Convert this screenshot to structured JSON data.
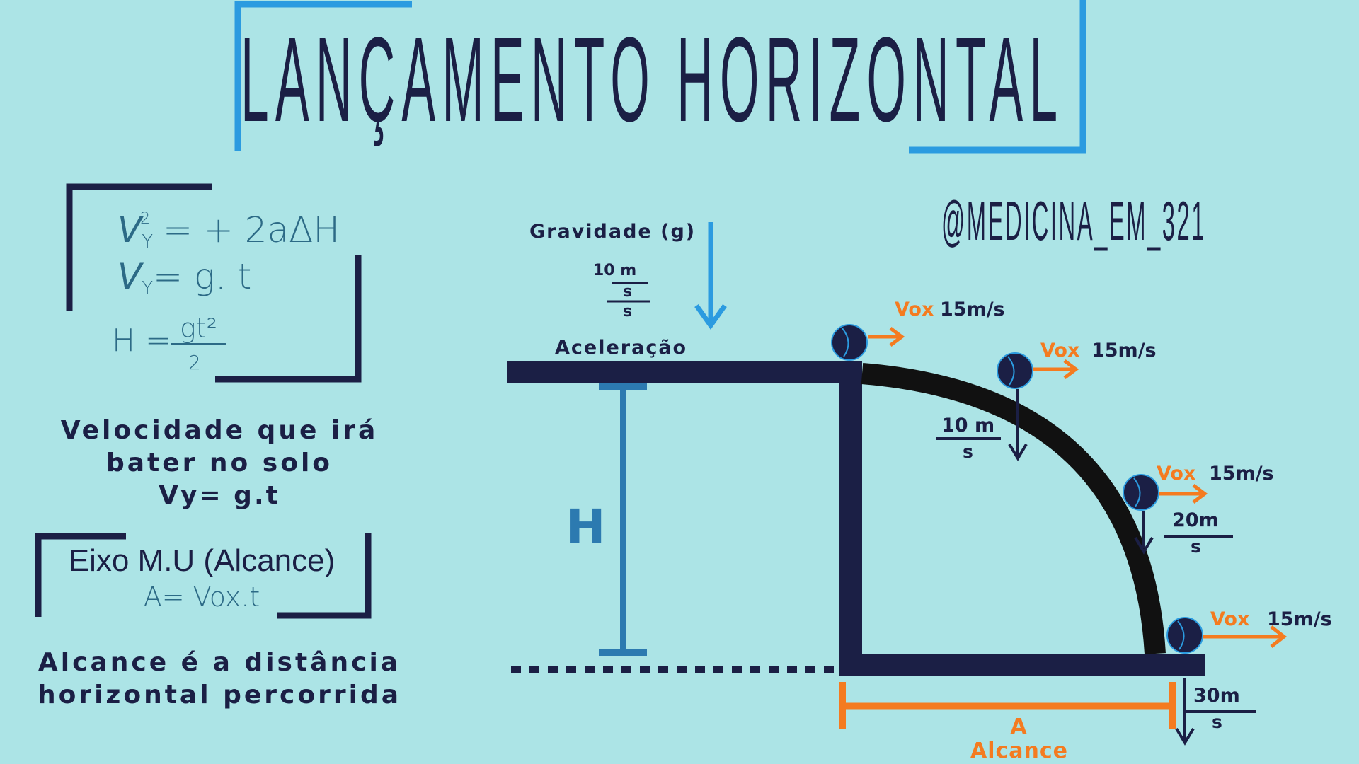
{
  "title": "LANÇAMENTO HORIZONTAL",
  "handle": "@MEDICINA_EM_321",
  "formulas": {
    "torricelli_lhs": "V",
    "torricelli_sup": "2",
    "torricelli_sub": "Y",
    "torricelli_rhs": "= + 2aΔH",
    "velocity_lhs": "V",
    "velocity_sub": "Y",
    "velocity_rhs": "= g. t",
    "height_lhs": "H =",
    "height_num": "gt²",
    "height_den": "2"
  },
  "velocity_note": {
    "line1": "Velocidade que irá",
    "line2": "bater no solo",
    "line3": "Vy= g.t"
  },
  "range_box": {
    "title": "Eixo M.U (Alcance)",
    "formula": "A= Vox.t"
  },
  "range_note": {
    "line1": "Alcance é a distância",
    "line2": "horizontal percorrida"
  },
  "gravity": {
    "label": "Gravidade (g)",
    "value_num": "10 m",
    "value_den1": "s",
    "value_den2": "s",
    "accel_label": "Aceleração"
  },
  "height_label": "H",
  "balls": [
    {
      "vox_label": "Vox",
      "vox_value": "15m/s"
    },
    {
      "vox_label": "Vox",
      "vox_value": "15m/s",
      "vy_num": "10 m",
      "vy_den": "s"
    },
    {
      "vox_label": "Vox",
      "vox_value": "15m/s",
      "vy_num": "20m",
      "vy_den": "s"
    },
    {
      "vox_label": "Vox",
      "vox_value": "15m/s",
      "vy_num": "30m",
      "vy_den": "s"
    }
  ],
  "range_label": {
    "letter": "A",
    "word": "Alcance"
  },
  "colors": {
    "background": "#ace4e6",
    "navy": "#1b1f45",
    "blue": "#2b9be0",
    "orange": "#f47b20",
    "teal": "#2c7ab0"
  }
}
